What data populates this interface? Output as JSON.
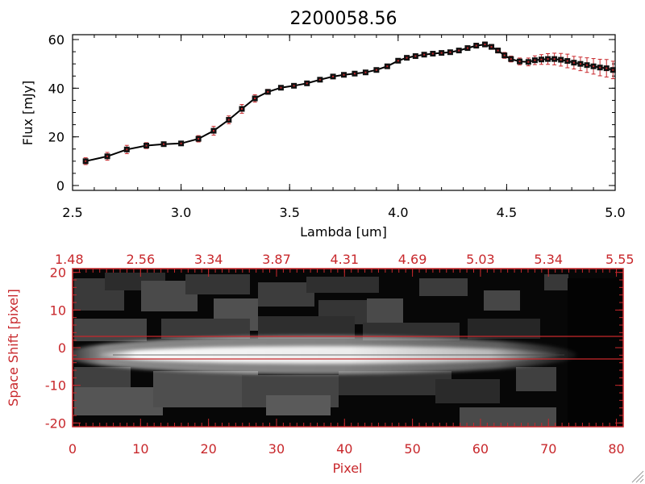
{
  "chart_data": [
    {
      "type": "line",
      "title": "2200058.56",
      "xlabel": "Lambda [um]",
      "ylabel": "Flux [mJy]",
      "xlim": [
        2.5,
        5.0
      ],
      "ylim": [
        -2,
        62
      ],
      "xticks": [
        "2.5",
        "3.0",
        "3.5",
        "4.0",
        "4.5",
        "5.0"
      ],
      "yticks": [
        "0",
        "20",
        "40",
        "60"
      ],
      "grid": false,
      "marker": "filled-square",
      "line_color": "#000000",
      "marker_color": "#111111",
      "errorbar_color": "#c8282c",
      "series": [
        {
          "x": [
            2.56,
            2.66,
            2.75,
            2.84,
            2.92,
            3.0,
            3.08,
            3.15,
            3.22,
            3.28,
            3.34,
            3.4,
            3.46,
            3.52,
            3.58,
            3.64,
            3.7,
            3.75,
            3.8,
            3.85,
            3.9,
            3.95,
            4.0,
            4.04,
            4.08,
            4.12,
            4.16,
            4.2,
            4.24,
            4.28,
            4.32,
            4.36,
            4.4,
            4.43,
            4.46,
            4.49,
            4.52,
            4.56,
            4.6,
            4.63,
            4.66,
            4.69,
            4.72,
            4.75,
            4.78,
            4.81,
            4.84,
            4.87,
            4.9,
            4.93,
            4.96,
            4.99
          ],
          "y": [
            10.0,
            12.0,
            14.8,
            16.4,
            17.0,
            17.3,
            19.2,
            22.5,
            27.0,
            31.5,
            35.8,
            38.5,
            40.2,
            41.0,
            42.0,
            43.5,
            44.8,
            45.5,
            46.0,
            46.5,
            47.5,
            49.0,
            51.3,
            52.5,
            53.2,
            53.8,
            54.2,
            54.5,
            54.8,
            55.5,
            56.5,
            57.5,
            58.0,
            57.0,
            55.5,
            53.5,
            52.0,
            51.0,
            50.8,
            51.5,
            51.8,
            52.0,
            52.0,
            51.7,
            51.2,
            50.5,
            50.0,
            49.5,
            49.0,
            48.5,
            48.2,
            47.5
          ],
          "err": [
            1.4,
            1.6,
            1.7,
            1.2,
            0.8,
            0.8,
            1.3,
            1.8,
            1.6,
            1.8,
            1.5,
            1.0,
            0.8,
            0.8,
            0.6,
            0.6,
            0.6,
            0.5,
            0.5,
            0.5,
            0.6,
            0.6,
            0.8,
            0.6,
            0.6,
            0.6,
            0.6,
            0.6,
            0.6,
            0.8,
            0.8,
            1.0,
            1.0,
            1.0,
            1.0,
            1.2,
            1.2,
            1.4,
            1.6,
            1.8,
            2.0,
            2.2,
            2.4,
            2.6,
            2.8,
            2.6,
            2.8,
            3.0,
            3.2,
            3.4,
            3.6,
            3.6
          ]
        }
      ]
    },
    {
      "type": "heatmap",
      "xlabel": "Pixel",
      "ylabel": "Space Shift [pixel]",
      "xlim": [
        0,
        81
      ],
      "ylim": [
        -21,
        21
      ],
      "xticks": [
        "0",
        "10",
        "20",
        "30",
        "40",
        "50",
        "60",
        "70",
        "80"
      ],
      "yticks": [
        "20",
        "10",
        "0",
        "-10",
        "-20"
      ],
      "top_axis_ticks": [
        "1.48",
        "2.56",
        "3.34",
        "3.87",
        "4.31",
        "4.69",
        "5.03",
        "5.34",
        "5.55"
      ],
      "aperture_lines_y": [
        3,
        -3
      ],
      "axis_color": "#c8282c",
      "colormap": "grayscale"
    }
  ]
}
